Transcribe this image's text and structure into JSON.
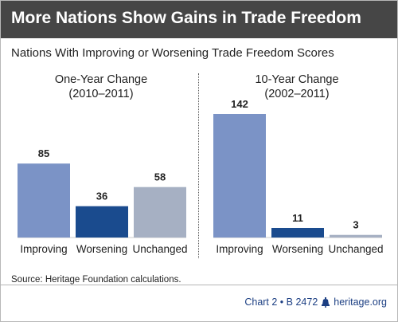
{
  "header": {
    "title": "More Nations Show Gains in Trade Freedom",
    "subtitle": "Nations With Improving or Worsening Trade Freedom Scores"
  },
  "chart_data": [
    {
      "type": "bar",
      "title_line1": "One-Year Change",
      "title_line2": "(2010–2011)",
      "categories": [
        "Improving",
        "Worsening",
        "Unchanged"
      ],
      "values": [
        85,
        36,
        58
      ],
      "colors": [
        "#7b93c6",
        "#1a4b8e",
        "#a6b0c3"
      ],
      "ylim": [
        0,
        150
      ],
      "grid": false
    },
    {
      "type": "bar",
      "title_line1": "10-Year Change",
      "title_line2": "(2002–2011)",
      "categories": [
        "Improving",
        "Worsening",
        "Unchanged"
      ],
      "values": [
        142,
        11,
        3
      ],
      "colors": [
        "#7b93c6",
        "#1a4b8e",
        "#a6b0c3"
      ],
      "ylim": [
        0,
        150
      ],
      "grid": false
    }
  ],
  "footer": {
    "source_label": "Source:",
    "source_text": "Heritage Foundation calculations.",
    "chart_id": "Chart 2 • B 2472",
    "site": "heritage.org",
    "credit_color": "#1c3f83",
    "icon": "liberty-bell-icon"
  }
}
